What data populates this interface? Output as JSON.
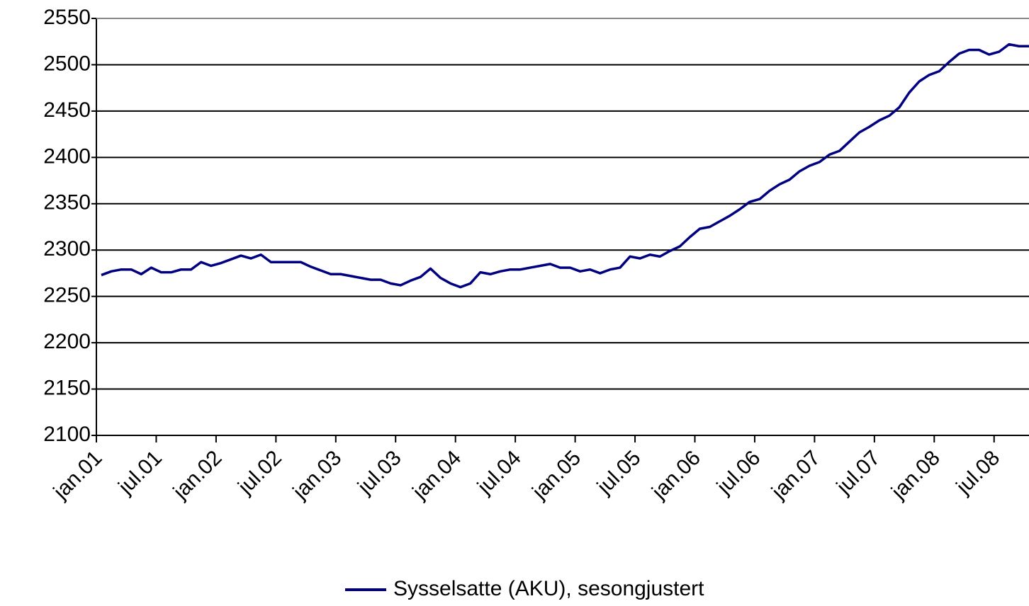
{
  "chart_data": {
    "type": "line",
    "categories": [
      "jan.01",
      null,
      null,
      null,
      null,
      null,
      "jul.01",
      null,
      null,
      null,
      null,
      null,
      "jan.02",
      null,
      null,
      null,
      null,
      null,
      "jul.02",
      null,
      null,
      null,
      null,
      null,
      "jan.03",
      null,
      null,
      null,
      null,
      null,
      "jul.03",
      null,
      null,
      null,
      null,
      null,
      "jan.04",
      null,
      null,
      null,
      null,
      null,
      "jul.04",
      null,
      null,
      null,
      null,
      null,
      "jan.05",
      null,
      null,
      null,
      null,
      null,
      "jul.05",
      null,
      null,
      null,
      null,
      null,
      "jan.06",
      null,
      null,
      null,
      null,
      null,
      "jul.06",
      null,
      null,
      null,
      null,
      null,
      "jan.07",
      null,
      null,
      null,
      null,
      null,
      "jul.07",
      null,
      null,
      null,
      null,
      null,
      "jan.08",
      null,
      null,
      null,
      null,
      null,
      "jul.08",
      null,
      null,
      null
    ],
    "series": [
      {
        "name": "Sysselsatte (AKU), sesongjustert",
        "color": "#000080",
        "values": [
          2273,
          2277,
          2279,
          2279,
          2274,
          2281,
          2276,
          2276,
          2279,
          2279,
          2287,
          2283,
          2286,
          2290,
          2294,
          2291,
          2295,
          2287,
          2287,
          2287,
          2287,
          2282,
          2278,
          2274,
          2274,
          2272,
          2270,
          2268,
          2268,
          2264,
          2262,
          2267,
          2271,
          2280,
          2270,
          2264,
          2260,
          2264,
          2276,
          2274,
          2277,
          2279,
          2279,
          2281,
          2283,
          2285,
          2281,
          2281,
          2277,
          2279,
          2275,
          2279,
          2281,
          2293,
          2291,
          2295,
          2293,
          2299,
          2304,
          2314,
          2323,
          2325,
          2331,
          2337,
          2344,
          2352,
          2355,
          2364,
          2371,
          2376,
          2385,
          2391,
          2395,
          2403,
          2407,
          2417,
          2427,
          2433,
          2440,
          2445,
          2454,
          2470,
          2482,
          2489,
          2493,
          2503,
          2512,
          2516,
          2516,
          2511,
          2514,
          2522,
          2520,
          2520
        ]
      }
    ],
    "ylim": [
      2100,
      2550
    ],
    "yticks": [
      2100,
      2150,
      2200,
      2250,
      2300,
      2350,
      2400,
      2450,
      2500,
      2550
    ],
    "grid": true,
    "legend": "bottom"
  }
}
